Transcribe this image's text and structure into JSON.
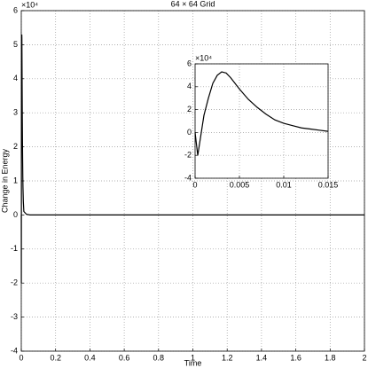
{
  "chart_data": [
    {
      "type": "line",
      "title": "64 × 64 Grid",
      "x_label": "Time",
      "y_label": "Change in Energy",
      "y_multiplier": "×10⁴",
      "xlim": [
        0,
        2
      ],
      "ylim": [
        -4,
        6
      ],
      "xticks": [
        0,
        0.2,
        0.4,
        0.6,
        0.8,
        1,
        1.2,
        1.4,
        1.6,
        1.8,
        2
      ],
      "yticks": [
        -4,
        -3,
        -2,
        -1,
        0,
        1,
        2,
        3,
        4,
        5,
        6
      ],
      "grid": true,
      "series": [
        {
          "color": "#000000",
          "x": [
            0,
            0.0003,
            0.0006,
            0.001,
            0.0015,
            0.002,
            0.0025,
            0.003,
            0.0035,
            0.004,
            0.005,
            0.006,
            0.007,
            0.008,
            0.009,
            0.01,
            0.011,
            0.012,
            0.013,
            0.014,
            0.015,
            0.03,
            0.05,
            0.5,
            1,
            2
          ],
          "values": [
            0,
            -2,
            -0.5,
            1.5,
            3,
            4.3,
            5,
            5.3,
            5.2,
            4.8,
            3.8,
            2.9,
            2.2,
            1.6,
            1.1,
            0.8,
            0.6,
            0.4,
            0.3,
            0.2,
            0.1,
            0.02,
            0,
            0,
            0,
            0
          ]
        }
      ]
    },
    {
      "type": "line",
      "y_multiplier": "×10⁴",
      "xlim": [
        0,
        0.015
      ],
      "ylim": [
        -4,
        6
      ],
      "xticks": [
        0,
        0.005,
        0.01,
        0.015
      ],
      "yticks": [
        -4,
        -2,
        0,
        2,
        4,
        6
      ],
      "grid": true,
      "series": [
        {
          "color": "#000000",
          "x": [
            0,
            0.0003,
            0.0006,
            0.001,
            0.0015,
            0.002,
            0.0025,
            0.003,
            0.0035,
            0.004,
            0.005,
            0.006,
            0.007,
            0.008,
            0.009,
            0.01,
            0.011,
            0.012,
            0.013,
            0.014,
            0.015
          ],
          "values": [
            0,
            -2,
            -0.5,
            1.5,
            3,
            4.3,
            5,
            5.3,
            5.2,
            4.8,
            3.8,
            2.9,
            2.2,
            1.6,
            1.1,
            0.8,
            0.6,
            0.4,
            0.3,
            0.2,
            0.1
          ]
        }
      ]
    }
  ]
}
